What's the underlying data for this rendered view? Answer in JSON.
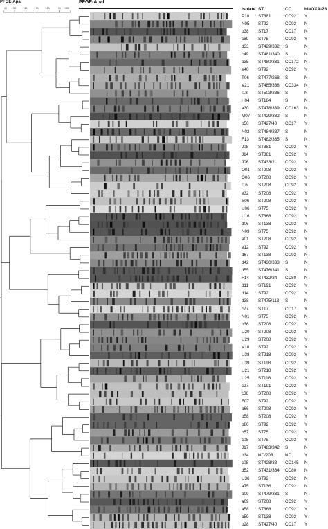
{
  "header": {
    "left_title": "PFGE-ApaI",
    "main_title": "PFGE-ApaI",
    "scale_ticks": [
      "40",
      "50",
      "60",
      "70",
      "80",
      "90",
      "100"
    ]
  },
  "columns": {
    "isolate": "Isolate",
    "st": "ST",
    "cc": "CC",
    "bla": "blaOXA-23"
  },
  "rows": [
    {
      "isolate": "P10",
      "st": "ST381",
      "cc": "CC92",
      "bla": "Y"
    },
    {
      "isolate": "N05",
      "st": "ST92",
      "cc": "CC92",
      "bla": "N"
    },
    {
      "isolate": "b38",
      "st": "ST17",
      "cc": "CC17",
      "bla": "N"
    },
    {
      "isolate": "c69",
      "st": "ST75",
      "cc": "CC92",
      "bla": "Y"
    },
    {
      "isolate": "d33",
      "st": "ST429/332",
      "cc": "S",
      "bla": "N"
    },
    {
      "isolate": "c49",
      "st": "ST481/340",
      "cc": "S",
      "bla": "N"
    },
    {
      "isolate": "b35",
      "st": "ST480/331",
      "cc": "CC172",
      "bla": "N"
    },
    {
      "isolate": "e40",
      "st": "ST92",
      "cc": "CC92",
      "bla": "Y"
    },
    {
      "isolate": "T06",
      "st": "ST477/268",
      "cc": "S",
      "bla": "N"
    },
    {
      "isolate": "V21",
      "st": "ST485/338",
      "cc": "CC334",
      "bla": "N"
    },
    {
      "isolate": "I18",
      "st": "ST503/336",
      "cc": "S",
      "bla": "N"
    },
    {
      "isolate": "H04",
      "st": "ST184",
      "cc": "S",
      "bla": "N"
    },
    {
      "isolate": "a30",
      "st": "ST478/339",
      "cc": "CC163",
      "bla": "N"
    },
    {
      "isolate": "M07",
      "st": "ST429/332",
      "cc": "S",
      "bla": "N"
    },
    {
      "isolate": "b50",
      "st": "ST427/40",
      "cc": "CC17",
      "bla": "Y"
    },
    {
      "isolate": "N02",
      "st": "ST484/337",
      "cc": "S",
      "bla": "N"
    },
    {
      "isolate": "F13",
      "st": "ST482/335",
      "cc": "S",
      "bla": "N"
    },
    {
      "isolate": "J08",
      "st": "ST381",
      "cc": "CC92",
      "bla": "Y"
    },
    {
      "isolate": "J14",
      "st": "ST381",
      "cc": "CC92",
      "bla": "Y"
    },
    {
      "isolate": "J06",
      "st": "ST433/2",
      "cc": "CC92",
      "bla": "Y"
    },
    {
      "isolate": "O01",
      "st": "ST208",
      "cc": "CC92",
      "bla": "Y"
    },
    {
      "isolate": "O06",
      "st": "ST208",
      "cc": "CC92",
      "bla": "Y"
    },
    {
      "isolate": "I16",
      "st": "ST208",
      "cc": "CC92",
      "bla": "Y"
    },
    {
      "isolate": "e32",
      "st": "ST208",
      "cc": "CC92",
      "bla": "Y"
    },
    {
      "isolate": "S06",
      "st": "ST208",
      "cc": "CC92",
      "bla": "Y"
    },
    {
      "isolate": "U06",
      "st": "ST75",
      "cc": "CC92",
      "bla": "Y"
    },
    {
      "isolate": "U16",
      "st": "ST368",
      "cc": "CC92",
      "bla": "Y"
    },
    {
      "isolate": "d06",
      "st": "ST138",
      "cc": "CC92",
      "bla": "Y"
    },
    {
      "isolate": "N09",
      "st": "ST75",
      "cc": "CC92",
      "bla": "N"
    },
    {
      "isolate": "e01",
      "st": "ST208",
      "cc": "CC92",
      "bla": "Y"
    },
    {
      "isolate": "e12",
      "st": "ST92",
      "cc": "CC92",
      "bla": "Y"
    },
    {
      "isolate": "d67",
      "st": "ST138",
      "cc": "CC92",
      "bla": "N"
    },
    {
      "isolate": "d42",
      "st": "ST430/333",
      "cc": "S",
      "bla": "N"
    },
    {
      "isolate": "d55",
      "st": "ST476/341",
      "cc": "S",
      "bla": "N"
    },
    {
      "isolate": "F14",
      "st": "ST432/34",
      "cc": "CC80",
      "bla": "N"
    },
    {
      "isolate": "d11",
      "st": "ST191",
      "cc": "CC92",
      "bla": "Y"
    },
    {
      "isolate": "d14",
      "st": "ST92",
      "cc": "CC92",
      "bla": "Y"
    },
    {
      "isolate": "d38",
      "st": "ST475/113",
      "cc": "S",
      "bla": "N"
    },
    {
      "isolate": "c77",
      "st": "ST17",
      "cc": "CC17",
      "bla": "Y"
    },
    {
      "isolate": "N01",
      "st": "ST75",
      "cc": "CC92",
      "bla": "N"
    },
    {
      "isolate": "b36",
      "st": "ST208",
      "cc": "CC92",
      "bla": "Y"
    },
    {
      "isolate": "U20",
      "st": "ST208",
      "cc": "CC92",
      "bla": "Y"
    },
    {
      "isolate": "U29",
      "st": "ST208",
      "cc": "CC92",
      "bla": "Y"
    },
    {
      "isolate": "V10",
      "st": "ST92",
      "cc": "CC92",
      "bla": "Y"
    },
    {
      "isolate": "U38",
      "st": "ST218",
      "cc": "CC92",
      "bla": "Y"
    },
    {
      "isolate": "U39",
      "st": "ST118",
      "cc": "CC92",
      "bla": "Y"
    },
    {
      "isolate": "U21",
      "st": "ST218",
      "cc": "CC92",
      "bla": "Y"
    },
    {
      "isolate": "U25",
      "st": "ST118",
      "cc": "CC92",
      "bla": "Y"
    },
    {
      "isolate": "c27",
      "st": "ST191",
      "cc": "CC92",
      "bla": "Y"
    },
    {
      "isolate": "c36",
      "st": "ST208",
      "cc": "CC92",
      "bla": "Y"
    },
    {
      "isolate": "F07",
      "st": "ST92",
      "cc": "CC92",
      "bla": "Y"
    },
    {
      "isolate": "b66",
      "st": "ST208",
      "cc": "CC92",
      "bla": "Y"
    },
    {
      "isolate": "b58",
      "st": "ST208",
      "cc": "CC92",
      "bla": "Y"
    },
    {
      "isolate": "b80",
      "st": "ST92",
      "cc": "CC92",
      "bla": "Y"
    },
    {
      "isolate": "b57",
      "st": "ST75",
      "cc": "CC92",
      "bla": "Y"
    },
    {
      "isolate": "c05",
      "st": "ST75",
      "cc": "CC92",
      "bla": "Y"
    },
    {
      "isolate": "J17",
      "st": "ST483/342",
      "cc": "S",
      "bla": "N"
    },
    {
      "isolate": "b34",
      "st": "ND/203",
      "cc": "ND",
      "bla": "Y"
    },
    {
      "isolate": "c08",
      "st": "ST428/33",
      "cc": "CC145",
      "bla": "N"
    },
    {
      "isolate": "d52",
      "st": "ST431/334",
      "cc": "CC80",
      "bla": "N"
    },
    {
      "isolate": "U36",
      "st": "ST92",
      "cc": "CC92",
      "bla": "N"
    },
    {
      "isolate": "a75",
      "st": "ST136",
      "cc": "CC92",
      "bla": "N"
    },
    {
      "isolate": "b09",
      "st": "ST479/331",
      "cc": "S",
      "bla": "N"
    },
    {
      "isolate": "a09",
      "st": "ST208",
      "cc": "CC92",
      "bla": "Y"
    },
    {
      "isolate": "a58",
      "st": "ST368",
      "cc": "CC92",
      "bla": "Y"
    },
    {
      "isolate": "a59",
      "st": "ST138",
      "cc": "CC92",
      "bla": "Y"
    },
    {
      "isolate": "b28",
      "st": "ST427/40",
      "cc": "CC17",
      "bla": "Y"
    }
  ]
}
